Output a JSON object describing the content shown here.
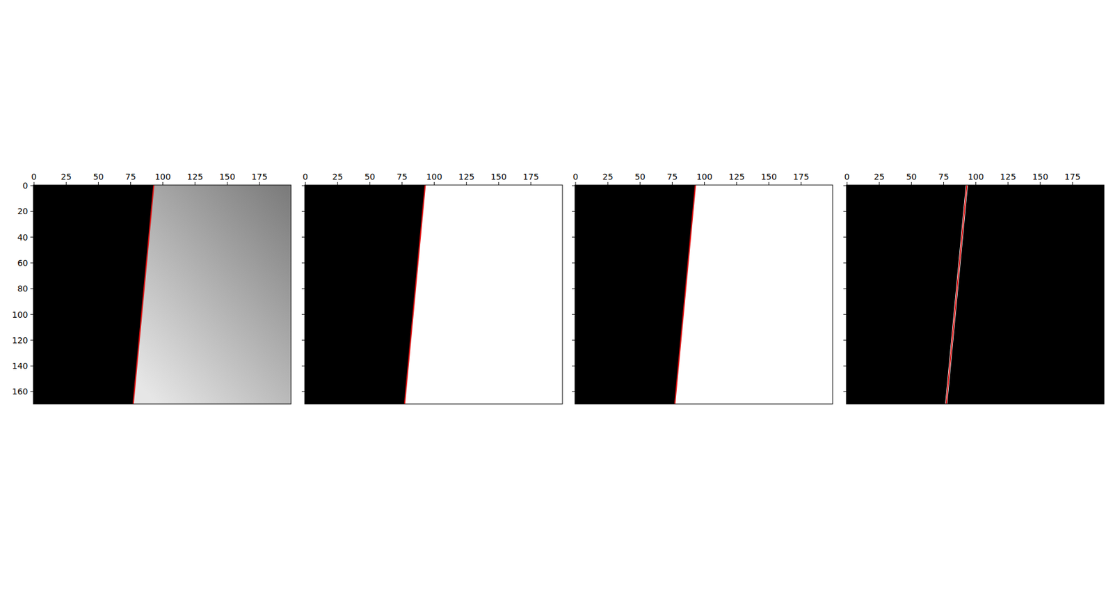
{
  "chart_data": [
    {
      "type": "image",
      "xlim": [
        -0.5,
        199.5
      ],
      "ylim": [
        169.5,
        -0.5
      ],
      "xticks": [
        0,
        25,
        50,
        75,
        100,
        125,
        150,
        175
      ],
      "yticks": [
        0,
        20,
        40,
        60,
        80,
        100,
        120,
        140,
        160
      ],
      "series": [
        {
          "type": "area",
          "color": "#000000",
          "x": [
            -0.5,
            93,
            77,
            -0.5
          ],
          "values": [
            -0.5,
            -0.5,
            169.5,
            169.5
          ]
        },
        {
          "type": "area",
          "colors": [
            "#7c7c7c",
            "#e6e6e6"
          ],
          "x": [
            93,
            199.5,
            199.5,
            77
          ],
          "values": [
            -0.5,
            -0.5,
            169.5,
            169.5
          ]
        },
        {
          "type": "line",
          "color": "#e01515",
          "x": [
            93,
            77
          ],
          "values": [
            -0.5,
            169.5
          ]
        }
      ]
    },
    {
      "type": "image",
      "xlim": [
        -0.5,
        199.5
      ],
      "ylim": [
        169.5,
        -0.5
      ],
      "tick_labels": "x",
      "xticks": [
        0,
        25,
        50,
        75,
        100,
        125,
        150,
        175
      ],
      "yticks": [
        0,
        20,
        40,
        60,
        80,
        100,
        120,
        140,
        160
      ],
      "series": [
        {
          "type": "area",
          "color": "#000000",
          "x": [
            -0.5,
            93,
            77,
            -0.5
          ],
          "values": [
            -0.5,
            -0.5,
            169.5,
            169.5
          ]
        },
        {
          "type": "area",
          "color": "#ffffff",
          "x": [
            93,
            199.5,
            199.5,
            77
          ],
          "values": [
            -0.5,
            -0.5,
            169.5,
            169.5
          ]
        },
        {
          "type": "line",
          "color": "#e01515",
          "x": [
            93,
            77
          ],
          "values": [
            -0.5,
            169.5
          ]
        }
      ]
    },
    {
      "type": "image",
      "xlim": [
        -0.5,
        199.5
      ],
      "ylim": [
        169.5,
        -0.5
      ],
      "tick_labels": "x",
      "xticks": [
        0,
        25,
        50,
        75,
        100,
        125,
        150,
        175
      ],
      "yticks": [
        0,
        20,
        40,
        60,
        80,
        100,
        120,
        140,
        160
      ],
      "series": [
        {
          "type": "area",
          "color": "#000000",
          "x": [
            -0.5,
            93,
            77,
            -0.5
          ],
          "values": [
            -0.5,
            -0.5,
            169.5,
            169.5
          ]
        },
        {
          "type": "area",
          "color": "#ffffff",
          "x": [
            93,
            199.5,
            199.5,
            77
          ],
          "values": [
            -0.5,
            -0.5,
            169.5,
            169.5
          ]
        },
        {
          "type": "line",
          "color": "#e01515",
          "x": [
            93,
            77
          ],
          "values": [
            -0.5,
            169.5
          ]
        }
      ]
    },
    {
      "type": "image",
      "xlim": [
        -0.5,
        199.5
      ],
      "ylim": [
        169.5,
        -0.5
      ],
      "tick_labels": "x",
      "xticks": [
        0,
        25,
        50,
        75,
        100,
        125,
        150,
        175
      ],
      "yticks": [
        0,
        20,
        40,
        60,
        80,
        100,
        120,
        140,
        160
      ],
      "series": [
        {
          "type": "area",
          "color": "#000000",
          "x": [
            -0.5,
            199.5,
            199.5,
            -0.5
          ],
          "values": [
            -0.5,
            -0.5,
            169.5,
            169.5
          ]
        },
        {
          "type": "line",
          "color": "#ffffff",
          "x": [
            93,
            77
          ],
          "values": [
            -0.5,
            169.5
          ]
        },
        {
          "type": "line",
          "color": "#e01515",
          "x": [
            93,
            77
          ],
          "values": [
            -0.5,
            169.5
          ]
        }
      ]
    }
  ]
}
